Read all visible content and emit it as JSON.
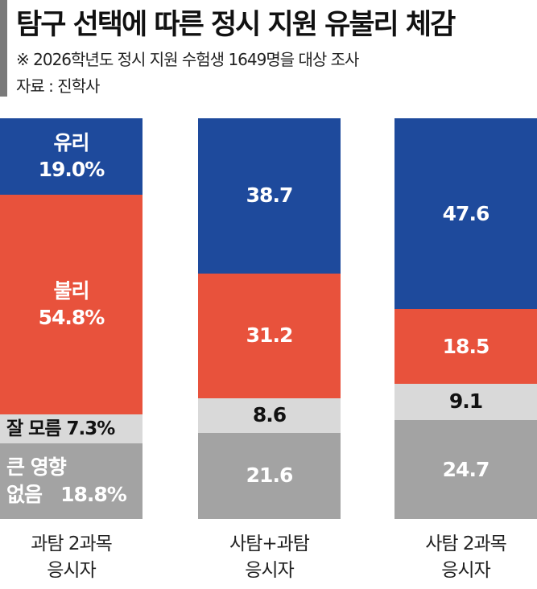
{
  "header": {
    "title": "탐구 선택에 따른 정시 지원 유불리 체감",
    "note": "※  2026학년도 정시 지원 수험생 1649명을 대상 조사",
    "source": "자료 : 진학사"
  },
  "chart_data": {
    "type": "bar",
    "stacked": true,
    "unit": "%",
    "categories": [
      "과탐 2과목 응시자",
      "사탐+과탐 응시자",
      "사탐 2과목 응시자"
    ],
    "category_lines": [
      [
        "과탐 2과목",
        "응시자"
      ],
      [
        "사탐+과탐",
        "응시자"
      ],
      [
        "사탐 2과목",
        "응시자"
      ]
    ],
    "series": [
      {
        "name": "유리",
        "color": "#1e4a9c",
        "text_color": "#ffffff",
        "values": [
          19.0,
          38.7,
          47.6
        ],
        "labels": [
          "유리\n19.0%",
          "38.7",
          "47.6"
        ]
      },
      {
        "name": "불리",
        "color": "#e8523c",
        "text_color": "#ffffff",
        "values": [
          54.8,
          31.2,
          18.5
        ],
        "labels": [
          "불리\n54.8%",
          "31.2",
          "18.5"
        ]
      },
      {
        "name": "잘 모름",
        "color": "#d9d9d9",
        "text_color": "#111111",
        "values": [
          7.3,
          8.6,
          9.1
        ],
        "labels": [
          "잘 모름 7.3%",
          "8.6",
          "9.1"
        ]
      },
      {
        "name": "큰 영향 없음",
        "color": "#a3a3a3",
        "text_color": "#ffffff",
        "values": [
          18.8,
          21.6,
          24.7
        ],
        "labels": [
          "큰 영향\n없음   18.8%",
          "21.6",
          "24.7"
        ]
      }
    ]
  }
}
